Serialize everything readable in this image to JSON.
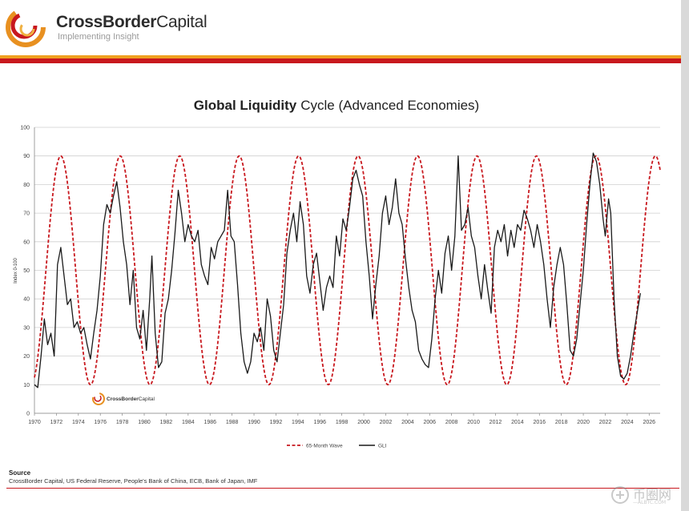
{
  "header": {
    "brand_bold": "CrossBorder",
    "brand_rest": "Capital",
    "tagline": "Implementing Insight"
  },
  "watermark": {
    "brand_bold": "CrossBorder",
    "brand_rest": "Capital",
    "site_name": "币圈网",
    "site_url": "—ALBTC.COM"
  },
  "footer": {
    "source_title": "Source",
    "source_text": "CrossBorder Capital, US Federal Reserve, People's Bank of China, ECB, Bank of Japan, IMF"
  },
  "colors": {
    "wave": "#c8181e",
    "gli": "#1a1a1a",
    "stripe_orange": "#f0a020",
    "stripe_red": "#c8181e"
  },
  "chart_data": {
    "type": "line",
    "title_bold": "Global Liquidity",
    "title_rest": "Cycle (Advanced Economies)",
    "xlabel": "",
    "ylabel": "Index 0-100",
    "xlim": [
      1970,
      2027
    ],
    "ylim": [
      0,
      100
    ],
    "x_ticks": [
      "1970",
      "1972",
      "1974",
      "1976",
      "1978",
      "1980",
      "1982",
      "1984",
      "1986",
      "1988",
      "1990",
      "1992",
      "1994",
      "1996",
      "1998",
      "2000",
      "2002",
      "2004",
      "2006",
      "2008",
      "2010",
      "2012",
      "2014",
      "2016",
      "2018",
      "2020",
      "2022",
      "2024",
      "2026"
    ],
    "y_ticks": [
      "0",
      "10",
      "20",
      "30",
      "40",
      "50",
      "60",
      "70",
      "80",
      "90",
      "100"
    ],
    "grid": "horizontal",
    "legend_position": "bottom-center",
    "series": [
      {
        "name": "65-Month Wave",
        "style": "dashed",
        "wave": {
          "period_years": 5.4167,
          "min": 10,
          "max": 90,
          "first_peak": 1972.4
        },
        "x_range": [
          1970,
          2027
        ]
      },
      {
        "name": "GLI",
        "style": "solid",
        "points": [
          [
            1970.0,
            10
          ],
          [
            1970.3,
            9
          ],
          [
            1970.6,
            20
          ],
          [
            1970.9,
            33
          ],
          [
            1971.2,
            24
          ],
          [
            1971.5,
            28
          ],
          [
            1971.8,
            20
          ],
          [
            1972.1,
            52
          ],
          [
            1972.4,
            58
          ],
          [
            1972.7,
            48
          ],
          [
            1973.0,
            38
          ],
          [
            1973.3,
            40
          ],
          [
            1973.6,
            30
          ],
          [
            1973.9,
            32
          ],
          [
            1974.2,
            28
          ],
          [
            1974.5,
            30
          ],
          [
            1974.8,
            24
          ],
          [
            1975.1,
            19
          ],
          [
            1975.4,
            28
          ],
          [
            1975.7,
            36
          ],
          [
            1976.0,
            48
          ],
          [
            1976.3,
            66
          ],
          [
            1976.6,
            73
          ],
          [
            1976.9,
            70
          ],
          [
            1977.2,
            76
          ],
          [
            1977.5,
            81
          ],
          [
            1977.8,
            72
          ],
          [
            1978.1,
            60
          ],
          [
            1978.4,
            52
          ],
          [
            1978.7,
            38
          ],
          [
            1979.0,
            50
          ],
          [
            1979.3,
            30
          ],
          [
            1979.6,
            26
          ],
          [
            1979.9,
            36
          ],
          [
            1980.2,
            22
          ],
          [
            1980.5,
            40
          ],
          [
            1980.7,
            55
          ],
          [
            1981.0,
            28
          ],
          [
            1981.3,
            16
          ],
          [
            1981.6,
            18
          ],
          [
            1981.9,
            35
          ],
          [
            1982.2,
            40
          ],
          [
            1982.5,
            50
          ],
          [
            1982.8,
            63
          ],
          [
            1983.1,
            78
          ],
          [
            1983.4,
            70
          ],
          [
            1983.7,
            60
          ],
          [
            1984.0,
            66
          ],
          [
            1984.3,
            62
          ],
          [
            1984.6,
            60
          ],
          [
            1984.9,
            64
          ],
          [
            1985.2,
            52
          ],
          [
            1985.5,
            48
          ],
          [
            1985.8,
            45
          ],
          [
            1986.1,
            58
          ],
          [
            1986.4,
            54
          ],
          [
            1986.7,
            60
          ],
          [
            1987.0,
            62
          ],
          [
            1987.3,
            64
          ],
          [
            1987.6,
            78
          ],
          [
            1987.9,
            62
          ],
          [
            1988.2,
            60
          ],
          [
            1988.5,
            45
          ],
          [
            1988.8,
            28
          ],
          [
            1989.1,
            18
          ],
          [
            1989.4,
            14
          ],
          [
            1989.7,
            18
          ],
          [
            1990.0,
            28
          ],
          [
            1990.3,
            25
          ],
          [
            1990.6,
            30
          ],
          [
            1990.9,
            22
          ],
          [
            1991.2,
            40
          ],
          [
            1991.5,
            34
          ],
          [
            1991.8,
            22
          ],
          [
            1992.1,
            18
          ],
          [
            1992.4,
            28
          ],
          [
            1992.7,
            38
          ],
          [
            1993.0,
            56
          ],
          [
            1993.3,
            64
          ],
          [
            1993.6,
            70
          ],
          [
            1993.9,
            60
          ],
          [
            1994.2,
            74
          ],
          [
            1994.5,
            66
          ],
          [
            1994.8,
            48
          ],
          [
            1995.1,
            42
          ],
          [
            1995.4,
            52
          ],
          [
            1995.7,
            56
          ],
          [
            1996.0,
            46
          ],
          [
            1996.3,
            36
          ],
          [
            1996.6,
            44
          ],
          [
            1996.9,
            48
          ],
          [
            1997.2,
            44
          ],
          [
            1997.5,
            62
          ],
          [
            1997.8,
            55
          ],
          [
            1998.1,
            68
          ],
          [
            1998.4,
            64
          ],
          [
            1998.7,
            72
          ],
          [
            1999.0,
            82
          ],
          [
            1999.3,
            85
          ],
          [
            1999.6,
            80
          ],
          [
            1999.9,
            76
          ],
          [
            2000.2,
            60
          ],
          [
            2000.5,
            48
          ],
          [
            2000.8,
            33
          ],
          [
            2001.1,
            45
          ],
          [
            2001.4,
            55
          ],
          [
            2001.7,
            70
          ],
          [
            2002.0,
            76
          ],
          [
            2002.3,
            66
          ],
          [
            2002.6,
            72
          ],
          [
            2002.9,
            82
          ],
          [
            2003.2,
            70
          ],
          [
            2003.5,
            66
          ],
          [
            2003.8,
            54
          ],
          [
            2004.1,
            44
          ],
          [
            2004.4,
            36
          ],
          [
            2004.7,
            32
          ],
          [
            2005.0,
            22
          ],
          [
            2005.3,
            19
          ],
          [
            2005.6,
            17
          ],
          [
            2005.9,
            16
          ],
          [
            2006.2,
            26
          ],
          [
            2006.5,
            40
          ],
          [
            2006.8,
            50
          ],
          [
            2007.1,
            42
          ],
          [
            2007.4,
            56
          ],
          [
            2007.7,
            62
          ],
          [
            2008.0,
            50
          ],
          [
            2008.3,
            62
          ],
          [
            2008.6,
            90
          ],
          [
            2008.9,
            64
          ],
          [
            2009.2,
            66
          ],
          [
            2009.5,
            72
          ],
          [
            2009.8,
            62
          ],
          [
            2010.1,
            58
          ],
          [
            2010.4,
            48
          ],
          [
            2010.7,
            40
          ],
          [
            2011.0,
            52
          ],
          [
            2011.3,
            43
          ],
          [
            2011.6,
            35
          ],
          [
            2011.9,
            58
          ],
          [
            2012.2,
            64
          ],
          [
            2012.5,
            60
          ],
          [
            2012.8,
            66
          ],
          [
            2013.1,
            55
          ],
          [
            2013.4,
            64
          ],
          [
            2013.7,
            58
          ],
          [
            2014.0,
            66
          ],
          [
            2014.3,
            64
          ],
          [
            2014.6,
            71
          ],
          [
            2014.9,
            68
          ],
          [
            2015.2,
            64
          ],
          [
            2015.5,
            58
          ],
          [
            2015.8,
            66
          ],
          [
            2016.1,
            60
          ],
          [
            2016.4,
            52
          ],
          [
            2016.7,
            40
          ],
          [
            2017.0,
            30
          ],
          [
            2017.3,
            44
          ],
          [
            2017.6,
            52
          ],
          [
            2017.9,
            58
          ],
          [
            2018.2,
            52
          ],
          [
            2018.5,
            38
          ],
          [
            2018.8,
            22
          ],
          [
            2019.1,
            20
          ],
          [
            2019.4,
            26
          ],
          [
            2019.7,
            38
          ],
          [
            2020.0,
            50
          ],
          [
            2020.3,
            66
          ],
          [
            2020.6,
            80
          ],
          [
            2020.9,
            91
          ],
          [
            2021.2,
            88
          ],
          [
            2021.5,
            80
          ],
          [
            2021.8,
            68
          ],
          [
            2022.0,
            62
          ],
          [
            2022.3,
            75
          ],
          [
            2022.5,
            70
          ],
          [
            2022.8,
            40
          ],
          [
            2023.1,
            20
          ],
          [
            2023.4,
            13
          ],
          [
            2023.7,
            12
          ],
          [
            2024.0,
            14
          ],
          [
            2024.3,
            20
          ],
          [
            2024.6,
            28
          ],
          [
            2024.9,
            35
          ],
          [
            2025.2,
            42
          ]
        ]
      }
    ]
  }
}
